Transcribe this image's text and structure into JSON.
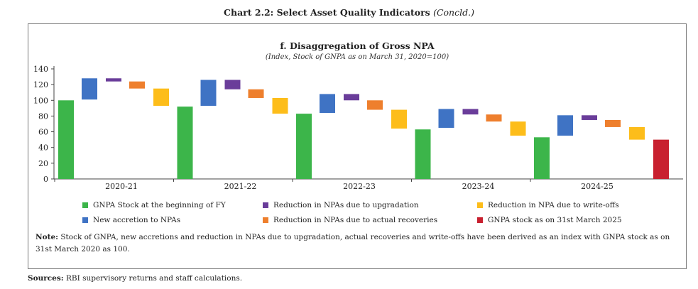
{
  "page": {
    "chart_number": "Chart 2.2: Select Asset Quality Indicators",
    "chart_number_suffix": "(Concld.)",
    "note_label": "Note:",
    "note_text": " Stock of GNPA, new accretions and reduction in NPAs due to upgradation, actual recoveries and write-offs have been derived as an index with GNPA stock as on 31st March 2020 as 100.",
    "sources_label": "Sources:",
    "sources_text": " RBI supervisory returns and staff calculations."
  },
  "colors": {
    "opening": "#3cb54a",
    "accretion": "#3f73c4",
    "upgradation": "#6a3d9a",
    "recoveries": "#ee7f2d",
    "writeoffs": "#fdbd1a",
    "closing": "#c8202f"
  },
  "chart_data": {
    "type": "bar",
    "subtype": "waterfall",
    "title": "f. Disaggregation of Gross NPA",
    "subtitle": "(Index, Stock of GNPA as on March 31, 2020=100)",
    "ylim": [
      0,
      140
    ],
    "yticks": [
      0,
      20,
      40,
      60,
      80,
      100,
      120,
      140
    ],
    "categories": [
      "2020-21",
      "2021-22",
      "2022-23",
      "2023-24",
      "2024-25"
    ],
    "groups": [
      {
        "label": "2020-21",
        "opening": 100,
        "accretion": [
          101,
          128
        ],
        "upgradation": [
          124,
          128
        ],
        "recoveries": [
          115,
          124
        ],
        "writeoffs": [
          93,
          115
        ]
      },
      {
        "label": "2021-22",
        "opening": 92,
        "accretion": [
          93,
          126
        ],
        "upgradation": [
          114,
          126
        ],
        "recoveries": [
          103,
          114
        ],
        "writeoffs": [
          83,
          103
        ]
      },
      {
        "label": "2022-23",
        "opening": 83,
        "accretion": [
          84,
          108
        ],
        "upgradation": [
          100,
          108
        ],
        "recoveries": [
          88,
          100
        ],
        "writeoffs": [
          64,
          88
        ]
      },
      {
        "label": "2023-24",
        "opening": 63,
        "accretion": [
          65,
          89
        ],
        "upgradation": [
          82,
          89
        ],
        "recoveries": [
          73,
          82
        ],
        "writeoffs": [
          55,
          73
        ]
      },
      {
        "label": "2024-25",
        "opening": 53,
        "accretion": [
          55,
          81
        ],
        "upgradation": [
          75,
          81
        ],
        "recoveries": [
          66,
          75
        ],
        "writeoffs": [
          50,
          66
        ],
        "closing": 50
      }
    ],
    "legend": {
      "position": "bottom",
      "entries": [
        {
          "key": "opening",
          "label": "GNPA Stock at the beginning of FY"
        },
        {
          "key": "upgradation",
          "label": "Reduction in NPAs due to upgradation"
        },
        {
          "key": "writeoffs",
          "label": "Reduction in NPA due to write-offs"
        },
        {
          "key": "accretion",
          "label": "New accretion to NPAs"
        },
        {
          "key": "recoveries",
          "label": "Reduction in NPAs due to actual recoveries"
        },
        {
          "key": "closing",
          "label": "GNPA stock as on 31st March 2025"
        }
      ]
    },
    "grid": false
  }
}
